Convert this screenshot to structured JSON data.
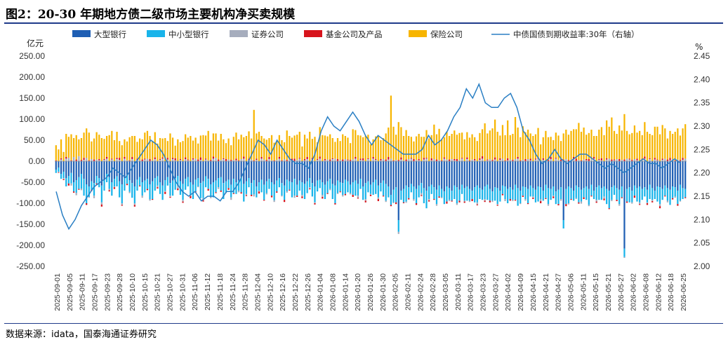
{
  "title": "图2：20-30 年期地方债二级市场主要机构净买卖规模",
  "source": "数据来源：idata，国泰海通证券研究",
  "chart_data": {
    "type": "bar",
    "stacked": true,
    "left_unit": "亿元",
    "right_unit": "%",
    "y_left": {
      "min": -250,
      "max": 250,
      "ticks": [
        "250.00",
        "200.00",
        "150.00",
        "100.00",
        "50.00",
        "0.00",
        "-50.00",
        "-100.00",
        "-150.00",
        "-200.00",
        "-250.00"
      ]
    },
    "y_right": {
      "min": 2.0,
      "max": 2.45,
      "ticks": [
        "2.45",
        "2.40",
        "2.35",
        "2.30",
        "2.25",
        "2.20",
        "2.15",
        "2.10",
        "2.05",
        "2.00"
      ]
    },
    "x_tick_labels": [
      "2025-09-01",
      "2025-09-05",
      "2025-09-11",
      "2025-09-17",
      "2025-09-23",
      "2025-09-28",
      "2025-10-10",
      "2025-10-15",
      "2025-10-21",
      "2025-10-27",
      "2025-10-31",
      "2025-11-06",
      "2025-11-12",
      "2025-11-18",
      "2025-11-24",
      "2025-11-28",
      "2025-12-04",
      "2025-12-10",
      "2025-12-16",
      "2025-12-22",
      "2025-12-26",
      "2026-01-04",
      "2026-01-08",
      "2026-01-14",
      "2026-01-20",
      "2026-01-26",
      "2026-01-30",
      "2026-02-05",
      "2026-02-11",
      "2026-02-24",
      "2026-02-28",
      "2026-03-05",
      "2026-03-11",
      "2026-03-17",
      "2026-03-23",
      "2026-03-27",
      "2026-04-02",
      "2026-04-09",
      "2026-04-15",
      "2026-04-21",
      "2026-04-27",
      "2026-05-06",
      "2026-05-11",
      "2026-05-15",
      "2026-05-21",
      "2026-05-27",
      "2026-06-02",
      "2026-06-08",
      "2026-06-12",
      "2026-06-18",
      "2026-06-25"
    ],
    "legend": [
      {
        "name": "大型银行",
        "color": "#1f5fb4",
        "kind": "bar"
      },
      {
        "name": "中小型银行",
        "color": "#19b4ea",
        "kind": "bar"
      },
      {
        "name": "证券公司",
        "color": "#a6adbd",
        "kind": "bar"
      },
      {
        "name": "基金公司及产品",
        "color": "#d7141c",
        "kind": "bar"
      },
      {
        "name": "保险公司",
        "color": "#f7b500",
        "kind": "bar"
      },
      {
        "name": "中债国债到期收益率:30年（右轴）",
        "color": "#2a7fc4",
        "kind": "line"
      }
    ],
    "insurance": [
      36,
      28,
      45,
      22,
      55,
      50,
      62,
      45,
      58,
      40,
      52,
      60,
      70,
      66,
      42,
      50,
      65,
      58,
      55,
      48,
      50,
      62,
      66,
      50,
      62,
      40,
      38,
      42,
      45,
      55,
      50,
      60,
      40,
      52,
      48,
      62,
      66,
      55,
      46,
      60,
      42,
      50,
      45,
      55,
      40,
      66,
      48,
      30,
      52,
      40,
      48,
      55,
      52,
      60,
      42,
      50,
      38,
      52,
      62,
      55,
      70,
      46,
      55,
      58,
      45,
      62,
      45,
      38,
      50,
      35,
      55,
      62,
      50,
      58,
      46,
      60,
      65,
      50,
      120,
      60,
      70,
      50,
      50,
      48,
      45,
      60,
      42,
      45,
      52,
      48,
      40,
      70,
      56,
      50,
      55,
      60,
      62,
      35,
      58,
      44,
      70,
      45,
      58,
      40,
      70,
      62,
      56,
      55,
      60,
      48,
      40,
      50,
      45,
      60,
      55,
      52,
      40,
      72,
      64,
      62,
      55,
      50,
      60,
      56,
      40,
      42,
      54,
      60,
      45,
      50,
      62,
      70,
      150,
      80,
      60,
      90,
      72,
      58,
      70,
      55,
      50,
      42,
      56,
      60,
      58,
      50,
      66,
      54,
      55,
      82,
      60,
      74,
      50,
      48,
      66,
      56,
      60,
      68,
      58,
      64,
      60,
      52,
      60,
      54,
      60,
      52,
      48,
      60,
      64,
      90,
      62,
      68,
      75,
      90,
      70,
      54,
      80,
      60,
      90,
      58,
      62,
      100,
      70,
      55,
      80,
      64,
      70,
      60,
      60,
      58,
      70,
      40,
      50,
      70,
      54,
      48,
      50,
      60,
      58,
      44,
      62,
      70,
      60,
      68,
      66,
      70,
      88,
      68,
      76,
      58,
      62,
      70,
      50,
      60,
      70,
      74,
      62,
      90,
      76,
      100,
      68,
      60,
      80,
      70,
      108,
      66,
      58,
      64,
      80,
      62,
      72,
      56,
      82,
      70,
      58,
      62,
      74,
      78,
      64,
      80,
      72,
      50,
      64,
      60,
      68,
      74,
      58,
      70,
      82
    ],
    "securities": [
      0,
      -2,
      4,
      -3,
      6,
      8,
      -5,
      10,
      -6,
      12,
      -4,
      3,
      8,
      -2,
      5,
      -6,
      4,
      2,
      -5,
      3,
      6,
      -3,
      4,
      -2,
      5,
      3,
      -4,
      6,
      2,
      -3,
      5,
      -4,
      3,
      2,
      -5,
      4,
      6,
      -3,
      2,
      5,
      -4,
      3,
      6,
      -2,
      4,
      -3,
      5,
      2,
      -6,
      3,
      -4,
      5,
      2,
      -3,
      4,
      6,
      -2,
      3,
      -5,
      4,
      2,
      -3,
      6,
      8,
      -4,
      3,
      5,
      -2,
      4,
      -6,
      3,
      2,
      -4,
      5,
      6,
      -3,
      2,
      4,
      -5,
      3,
      -2,
      6,
      4,
      -3,
      5,
      2,
      -4,
      3,
      6,
      -2,
      5,
      -3,
      4,
      2,
      -5,
      3,
      6,
      -4,
      2,
      5,
      -3,
      4,
      -2,
      3,
      6,
      -5,
      2,
      4,
      -3,
      5,
      6,
      -2,
      3,
      -4,
      5,
      2,
      -3,
      4,
      6,
      -5,
      3,
      2,
      -4,
      5,
      -2,
      6,
      3,
      -4,
      2,
      5,
      -3,
      4,
      6,
      -2,
      3,
      -5,
      4,
      2,
      -3,
      5,
      6,
      -4,
      3,
      2,
      -5,
      4,
      6,
      -3,
      2,
      5,
      -4,
      3,
      -2,
      6,
      4,
      -3,
      5,
      2,
      -4,
      3,
      6,
      -2,
      5,
      -3,
      4,
      2,
      -5,
      3,
      6,
      -4,
      2,
      5,
      -3,
      4,
      -2,
      3,
      6,
      -5,
      2,
      4,
      -3,
      5,
      6,
      -2,
      3,
      -4,
      5,
      2,
      -3,
      4,
      6,
      -5,
      3,
      2,
      -4,
      5,
      -2,
      6,
      3,
      -4,
      2,
      5,
      -3,
      4,
      6,
      -2,
      3,
      -5,
      4,
      2,
      -3,
      5,
      6,
      -4,
      3,
      2,
      -5,
      4,
      6,
      -3,
      2,
      5,
      -4,
      3,
      -2,
      6,
      4,
      -3,
      5,
      2,
      -4,
      3,
      6,
      -2,
      5,
      -3,
      4,
      2,
      -5,
      3,
      6,
      -4,
      2,
      5,
      -3,
      4,
      -2,
      3,
      6,
      -5,
      2,
      4
    ],
    "fund": [
      2,
      -1,
      3,
      -2,
      4,
      -5,
      2,
      -3,
      4,
      -2,
      3,
      5,
      -4,
      2,
      -3,
      4,
      -2,
      3,
      -5,
      2,
      4,
      -3,
      2,
      -4,
      3,
      5,
      -2,
      4,
      -3,
      2,
      5,
      -4,
      3,
      -2,
      4,
      2,
      -3,
      5,
      -2,
      4,
      -3,
      2,
      3,
      -5,
      4,
      -2,
      3,
      5,
      -4,
      2,
      -3,
      4,
      2,
      -5,
      3,
      -2,
      4,
      6,
      -3,
      2,
      -4,
      3,
      5,
      -2,
      4,
      -3,
      2,
      5,
      -4,
      3,
      -2,
      4,
      2,
      -3,
      5,
      -2,
      4,
      -3,
      2,
      3,
      -5,
      4,
      -2,
      3,
      5,
      -4,
      2,
      -3,
      4,
      2,
      -5,
      3,
      -2,
      4,
      6,
      -3,
      2,
      -4,
      3,
      5,
      -2,
      4,
      -3,
      2,
      5,
      -4,
      3,
      -2,
      4,
      2,
      -3,
      5,
      -2,
      4,
      -3,
      2,
      3,
      -5,
      4,
      -2,
      3,
      5,
      -4,
      2,
      -3,
      4,
      2,
      -5,
      3,
      -2,
      4,
      6,
      -3,
      2,
      -4,
      3,
      5,
      -2,
      4,
      -3,
      2,
      5,
      -4,
      3,
      -2,
      4,
      2,
      -3,
      5,
      -2,
      4,
      -3,
      2,
      3,
      -5,
      4,
      -2,
      3,
      5,
      -4,
      2,
      -3,
      4,
      2,
      -5,
      3,
      -2,
      4,
      6,
      -3,
      2,
      -4,
      3,
      5,
      -2,
      4,
      -3,
      2,
      5,
      -4,
      3,
      -2,
      4,
      2,
      -3,
      5,
      -2,
      4,
      -3,
      2,
      3,
      -5,
      4,
      -2,
      3,
      5,
      -4,
      2,
      -3,
      4,
      2,
      -5,
      3,
      -2,
      4,
      6,
      -3,
      2,
      -4,
      3,
      5,
      -2,
      4,
      -3,
      2,
      5,
      -4,
      3,
      -2,
      4,
      2,
      -3,
      5,
      -2,
      4,
      -3,
      2,
      3,
      -5,
      4,
      -2,
      3,
      5,
      -4,
      2,
      -3,
      4,
      2,
      -5,
      3,
      -2,
      4,
      6,
      -3,
      2,
      -4,
      3,
      5,
      -2,
      4,
      -3,
      2,
      5,
      -4,
      3,
      -2,
      4,
      2,
      -3,
      5,
      -2
    ],
    "large_bank": [
      -20,
      -15,
      -30,
      -25,
      -40,
      -35,
      -28,
      -50,
      -45,
      -38,
      -30,
      -42,
      -55,
      -60,
      -48,
      -52,
      -35,
      -40,
      -58,
      -45,
      -30,
      -38,
      -50,
      -42,
      -36,
      -48,
      -55,
      -40,
      -32,
      -45,
      -52,
      -60,
      -44,
      -38,
      -50,
      -46,
      -42,
      -55,
      -48,
      -40,
      -36,
      -50,
      -58,
      -45,
      -38,
      -52,
      -46,
      -40,
      -35,
      -48,
      -54,
      -42,
      -38,
      -50,
      -56,
      -44,
      -40,
      -52,
      -48,
      -36,
      -42,
      -55,
      -50,
      -46,
      -40,
      -38,
      -52,
      -48,
      -44,
      -56,
      -42,
      -50,
      -46,
      -38,
      -54,
      -48,
      -40,
      -52,
      -45,
      -60,
      -50,
      -44,
      -56,
      -48,
      -42,
      -50,
      -55,
      -46,
      -40,
      -52,
      -58,
      -44,
      -48,
      -50,
      -42,
      -56,
      -46,
      -50,
      -54,
      -48,
      -40,
      -52,
      -60,
      -46,
      -44,
      -50,
      -56,
      -48,
      -42,
      -54,
      -58,
      -46,
      -50,
      -52,
      -44,
      -48,
      -56,
      -50,
      -46,
      -54,
      -42,
      -60,
      -52,
      -48,
      -56,
      -50,
      -44,
      -58,
      -52,
      -46,
      -54,
      -60,
      -80,
      -68,
      -62,
      -140,
      -70,
      -66,
      -58,
      -62,
      -54,
      -60,
      -66,
      -58,
      -52,
      -64,
      -70,
      -60,
      -56,
      -62,
      -68,
      -58,
      -66,
      -72,
      -60,
      -64,
      -70,
      -58,
      -62,
      -68,
      -56,
      -64,
      -60,
      -66,
      -70,
      -62,
      -58,
      -64,
      -68,
      -60,
      -56,
      -66,
      -72,
      -62,
      -64,
      -70,
      -58,
      -60,
      -66,
      -62,
      -68,
      -56,
      -64,
      -70,
      -60,
      -62,
      -66,
      -58,
      -64,
      -68,
      -60,
      -62,
      -70,
      -56,
      -64,
      -66,
      -60,
      -72,
      -68,
      -62,
      -140,
      -66,
      -60,
      -64,
      -70,
      -58,
      -62,
      -68,
      -64,
      -60,
      -66,
      -56,
      -70,
      -62,
      -58,
      -64,
      -60,
      -66,
      -70,
      -62,
      -58,
      -64,
      -68,
      -60,
      -208,
      -66,
      -62,
      -70,
      -58,
      -64,
      -60,
      -66,
      -62,
      -68,
      -56,
      -64,
      -70,
      -60,
      -62,
      -66,
      -58,
      -64,
      -68,
      -60,
      -62,
      -70,
      -56,
      -64,
      -66
    ],
    "small_bank": [
      -8,
      -10,
      -12,
      -15,
      -20,
      -18,
      -25,
      -22,
      -30,
      -28,
      -35,
      -40,
      -45,
      -25,
      -20,
      -30,
      -18,
      -22,
      -40,
      -25,
      -20,
      -28,
      -32,
      -18,
      -24,
      -38,
      -45,
      -30,
      -22,
      -28,
      -35,
      -40,
      -26,
      -20,
      -32,
      -28,
      -24,
      -36,
      -42,
      -30,
      -22,
      -28,
      -34,
      -26,
      -20,
      -30,
      -36,
      -28,
      -24,
      -32,
      -38,
      -26,
      -22,
      -30,
      -34,
      -28,
      -20,
      -36,
      -40,
      -26,
      -24,
      -30,
      -36,
      -28,
      -22,
      -32,
      -38,
      -26,
      -20,
      -30,
      -34,
      -28,
      -24,
      -36,
      -42,
      -30,
      -22,
      -28,
      -34,
      -26,
      -20,
      -30,
      -36,
      -28,
      -24,
      -32,
      -38,
      -26,
      -22,
      -30,
      -34,
      -28,
      -20,
      -36,
      -40,
      -26,
      -24,
      -30,
      -36,
      -28,
      -22,
      -32,
      -38,
      -26,
      -20,
      -30,
      -34,
      -28,
      -24,
      -36,
      -42,
      -30,
      -22,
      -28,
      -34,
      -26,
      -20,
      -30,
      -36,
      -28,
      -24,
      -32,
      -38,
      -26,
      -22,
      -30,
      -34,
      -28,
      -20,
      -36,
      -40,
      -26,
      -24,
      -30,
      -36,
      -28,
      -22,
      -32,
      -38,
      -26,
      -20,
      -30,
      -34,
      -28,
      -24,
      -36,
      -42,
      -30,
      -22,
      -28,
      -34,
      -26,
      -20,
      -30,
      -36,
      -28,
      -24,
      -32,
      -38,
      -26,
      -22,
      -30,
      -34,
      -28,
      -20,
      -36,
      -40,
      -26,
      -24,
      -30,
      -36,
      -28,
      -22,
      -32,
      -38,
      -26,
      -20,
      -30,
      -34,
      -28,
      -24,
      -36,
      -42,
      -30,
      -22,
      -28,
      -34,
      -26,
      -20,
      -30,
      -36,
      -28,
      -24,
      -32,
      -38,
      -26,
      -22,
      -30,
      -34,
      -28,
      -20,
      -36,
      -40,
      -26,
      -24,
      -30,
      -36,
      -28,
      -22,
      -32,
      -38,
      -26,
      -20,
      -30,
      -34,
      -28,
      -24,
      -36,
      -42,
      -30,
      -22,
      -28,
      -34,
      -26,
      -20,
      -30,
      -36,
      -28,
      -24,
      -32,
      -38,
      -26,
      -22,
      -30,
      -34,
      -28,
      -20,
      -36,
      -40,
      -26,
      -24,
      -30,
      -36,
      -28,
      -22,
      -32,
      -38,
      -26,
      -20,
      -30,
      -34,
      -28,
      -24,
      -36,
      -42,
      -30,
      -22,
      -28,
      -34
    ],
    "yield_30y": [
      2.16,
      2.11,
      2.08,
      2.1,
      2.13,
      2.15,
      2.17,
      2.18,
      2.19,
      2.21,
      2.2,
      2.19,
      2.21,
      2.23,
      2.25,
      2.27,
      2.26,
      2.24,
      2.21,
      2.18,
      2.16,
      2.15,
      2.16,
      2.14,
      2.15,
      2.15,
      2.14,
      2.16,
      2.16,
      2.18,
      2.21,
      2.24,
      2.27,
      2.26,
      2.24,
      2.27,
      2.25,
      2.23,
      2.22,
      2.22,
      2.21,
      2.24,
      2.29,
      2.32,
      2.3,
      2.29,
      2.31,
      2.33,
      2.31,
      2.28,
      2.26,
      2.28,
      2.27,
      2.26,
      2.25,
      2.24,
      2.24,
      2.24,
      2.25,
      2.28,
      2.26,
      2.27,
      2.29,
      2.32,
      2.34,
      2.38,
      2.36,
      2.39,
      2.35,
      2.34,
      2.34,
      2.36,
      2.37,
      2.34,
      2.29,
      2.27,
      2.24,
      2.22,
      2.23,
      2.25,
      2.23,
      2.22,
      2.23,
      2.24,
      2.24,
      2.23,
      2.22,
      2.21,
      2.22,
      2.21,
      2.2,
      2.21,
      2.22,
      2.23,
      2.22,
      2.22,
      2.21,
      2.22,
      2.23,
      2.22
    ]
  }
}
